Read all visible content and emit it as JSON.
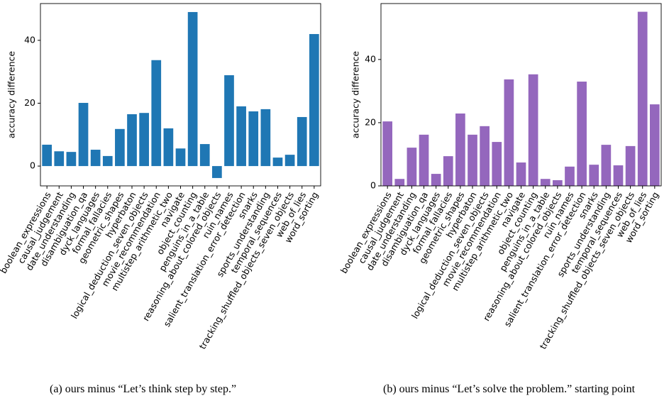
{
  "chart_data": [
    {
      "type": "bar",
      "ylabel": "accuracy difference",
      "color": "#1f77b4",
      "caption": "(a) ours minus “Let’s think step by step.”",
      "categories": [
        "boolean_expressions",
        "causal_judgement",
        "date_understanding",
        "disambiguation_qa",
        "dyck_languages",
        "formal_fallacies",
        "geometric_shapes",
        "hyperbaton",
        "logical_deduction_seven_objects",
        "movie_recommendation",
        "multistep_arithmetic_two",
        "navigate",
        "object_counting",
        "penguins_in_a_table",
        "reasoning_about_colored_objects",
        "ruin_names",
        "salient_translation_error_detection",
        "snarks",
        "sports_understanding",
        "temporal_sequences",
        "tracking_shuffled_objects_seven_objects",
        "web_of_lies",
        "word_sorting"
      ],
      "values": [
        6.8,
        4.7,
        4.5,
        20.1,
        5.2,
        3.2,
        11.8,
        16.5,
        16.9,
        33.7,
        12.0,
        5.6,
        49.0,
        7.0,
        -3.8,
        28.9,
        19.0,
        17.4,
        18.1,
        2.7,
        3.6,
        15.6,
        42.0
      ],
      "ylim": [
        -6.3,
        51.7
      ],
      "yticks": [
        0,
        20,
        40
      ]
    },
    {
      "type": "bar",
      "ylabel": "accuracy difference",
      "color": "#9467bd",
      "caption": "(b) ours minus “Let’s solve the problem.” starting point",
      "categories": [
        "boolean_expressions",
        "causal_judgement",
        "date_understanding",
        "disambiguation_qa",
        "dyck_languages",
        "formal_fallacies",
        "geometric_shapes",
        "hyperbaton",
        "logical_deduction_seven_objects",
        "movie_recommendation",
        "multistep_arithmetic_two",
        "navigate",
        "object_counting",
        "penguins_in_a_table",
        "reasoning_about_colored_objects",
        "ruin_names",
        "salient_translation_error_detection",
        "snarks",
        "sports_understanding",
        "temporal_sequences",
        "tracking_shuffled_objects_seven_objects",
        "web_of_lies",
        "word_sorting"
      ],
      "values": [
        20.4,
        2.2,
        12.1,
        16.2,
        3.8,
        9.4,
        22.9,
        16.2,
        18.9,
        13.9,
        33.7,
        7.4,
        35.3,
        2.2,
        1.8,
        6.1,
        33.0,
        6.7,
        13.0,
        6.5,
        12.6,
        55.1,
        25.8
      ],
      "ylim": [
        0,
        57.7
      ],
      "yticks": [
        0,
        20,
        40
      ]
    }
  ]
}
